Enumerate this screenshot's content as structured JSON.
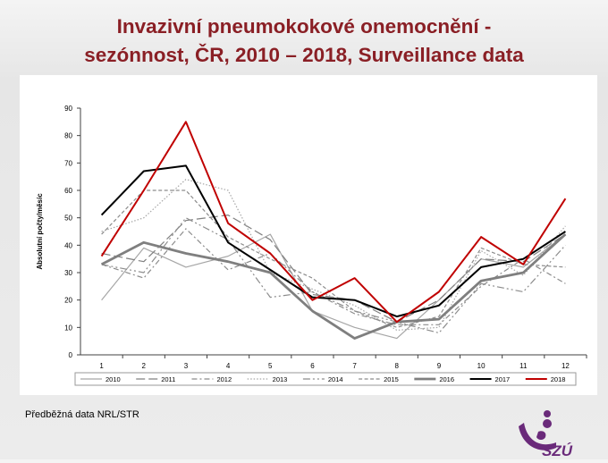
{
  "title_line1": "Invazivní pneumokokové onemocnění -",
  "title_line2": "sezónnost, ČR, 2010 – 2018, Surveillance data",
  "footnote": "Předběžná data NRL/STR",
  "logo_text": "SZÚ",
  "chart_data": {
    "type": "line",
    "ylabel": "Absolutní počty/měsíc",
    "xlabel": "",
    "ylim": [
      0,
      90
    ],
    "yticks": [
      0,
      10,
      20,
      30,
      40,
      50,
      60,
      70,
      80,
      90
    ],
    "x": [
      1,
      2,
      3,
      4,
      5,
      6,
      7,
      8,
      9,
      10,
      11,
      12
    ],
    "grid": false,
    "legend_position": "bottom",
    "series": [
      {
        "name": "2010",
        "color": "#a6a6a6",
        "values": [
          20,
          39,
          32,
          36,
          44,
          16,
          10,
          6,
          20,
          35,
          32,
          44
        ]
      },
      {
        "name": "2011",
        "color": "#808080",
        "values": [
          37,
          34,
          49,
          51,
          42,
          22,
          20,
          12,
          20,
          35,
          34,
          44
        ]
      },
      {
        "name": "2012",
        "color": "#8c8c8c",
        "values": [
          33,
          28,
          46,
          31,
          37,
          23,
          15,
          11,
          11,
          25,
          35,
          26
        ]
      },
      {
        "name": "2013",
        "color": "#a6a6a6",
        "values": [
          45,
          50,
          64,
          60,
          30,
          24,
          18,
          9,
          10,
          38,
          29,
          47
        ]
      },
      {
        "name": "2014",
        "color": "#8c8c8c",
        "values": [
          33,
          30,
          50,
          42,
          21,
          23,
          16,
          12,
          8,
          26,
          23,
          40
        ]
      },
      {
        "name": "2015",
        "color": "#8c8c8c",
        "values": [
          44,
          60,
          60,
          43,
          35,
          28,
          16,
          10,
          14,
          39,
          33,
          32
        ]
      },
      {
        "name": "2016",
        "color": "#7f7f7f",
        "values": [
          33,
          41,
          37,
          34,
          30,
          16,
          6,
          12,
          13,
          27,
          30,
          44
        ]
      },
      {
        "name": "2017",
        "color": "#000000",
        "values": [
          51,
          67,
          69,
          41,
          31,
          21,
          20,
          14,
          18,
          32,
          35,
          45
        ]
      },
      {
        "name": "2018",
        "color": "#c00000",
        "values": [
          36,
          60,
          85,
          48,
          37,
          20,
          28,
          12,
          23,
          43,
          33,
          57
        ]
      }
    ]
  }
}
